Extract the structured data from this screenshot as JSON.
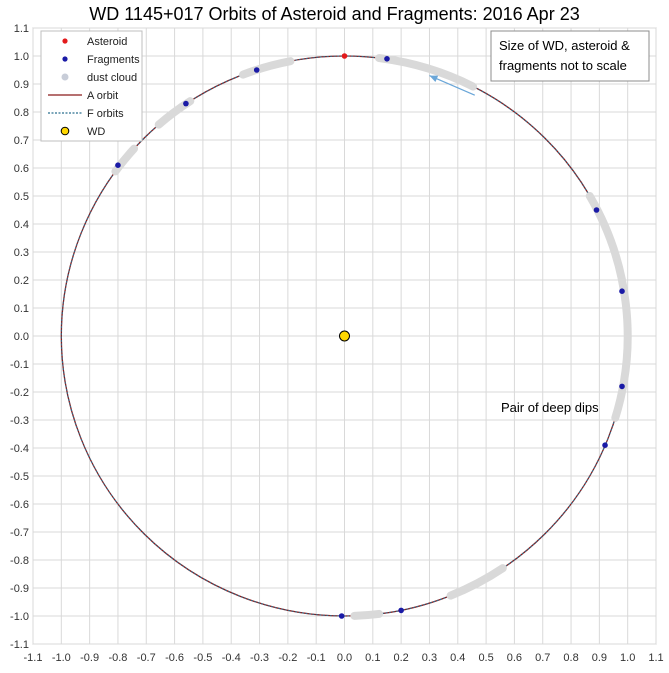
{
  "chart_data": {
    "type": "scatter",
    "title": "WD 1145+017 Orbits of Asteroid and Fragments: 2016 Apr 23",
    "xlim": [
      -1.1,
      1.1
    ],
    "ylim": [
      -1.1,
      1.1
    ],
    "x_ticks": [
      "-1.1",
      "-1.0",
      "-0.9",
      "-0.8",
      "-0.7",
      "-0.6",
      "-0.5",
      "-0.4",
      "-0.3",
      "-0.2",
      "-0.1",
      "0.0",
      "0.1",
      "0.2",
      "0.3",
      "0.4",
      "0.5",
      "0.6",
      "0.7",
      "0.8",
      "0.9",
      "1.0",
      "1.1"
    ],
    "y_ticks": [
      "1.1",
      "1.0",
      "0.9",
      "0.8",
      "0.7",
      "0.6",
      "0.5",
      "0.4",
      "0.3",
      "0.2",
      "0.1",
      "0.0",
      "-0.1",
      "-0.2",
      "-0.3",
      "-0.4",
      "-0.5",
      "-0.6",
      "-0.7",
      "-0.8",
      "-0.9",
      "-1.0",
      "-1.1"
    ],
    "grid": true,
    "legend_position": "top-left",
    "legend": [
      {
        "label": "Asteroid",
        "kind": "dot",
        "color": "#e31a1c"
      },
      {
        "label": "Fragments",
        "kind": "dot",
        "color": "#1a1aa6"
      },
      {
        "label": "dust cloud",
        "kind": "dot",
        "color": "#c8cdd8"
      },
      {
        "label": "A orbit",
        "kind": "line",
        "color": "#8b1a1a"
      },
      {
        "label": "F orbits",
        "kind": "dash",
        "color": "#2a6f8f"
      },
      {
        "label": "WD",
        "kind": "big-dot",
        "color": "#ffd700"
      }
    ],
    "series": [
      {
        "name": "Asteroid",
        "points": [
          [
            0.0,
            1.0
          ]
        ],
        "color": "#e31a1c"
      },
      {
        "name": "Fragments",
        "color": "#1a1aa6",
        "points": [
          [
            0.15,
            0.99
          ],
          [
            -0.31,
            0.95
          ],
          [
            -0.56,
            0.83
          ],
          [
            -0.8,
            0.61
          ],
          [
            0.89,
            0.45
          ],
          [
            0.98,
            0.16
          ],
          [
            0.98,
            -0.18
          ],
          [
            0.92,
            -0.39
          ],
          [
            0.2,
            -0.98
          ],
          [
            -0.01,
            -1.0
          ]
        ]
      },
      {
        "name": "dust cloud",
        "color": "#d9d9d9",
        "arcs_deg": [
          [
            63,
            83
          ],
          [
            101,
            111
          ],
          [
            123,
            131
          ],
          [
            138,
            144
          ],
          [
            -17,
            30
          ],
          [
            -68,
            -56
          ],
          [
            -88,
            -83
          ]
        ]
      },
      {
        "name": "A orbit",
        "center": [
          0,
          0
        ],
        "radius": 1.0,
        "color": "#8b1a1a"
      },
      {
        "name": "F orbits",
        "center": [
          0,
          0
        ],
        "radius": 1.0,
        "color": "#2a6f8f"
      },
      {
        "name": "WD",
        "points": [
          [
            0.0,
            0.0
          ]
        ],
        "color": "#ffd700"
      }
    ],
    "annotations": [
      {
        "text_lines": [
          "Size of WD, asteroid &",
          "fragments not to scale"
        ],
        "boxed": true
      },
      {
        "text_lines": [
          "Pair of deep dips"
        ],
        "boxed": false
      }
    ],
    "arrow": {
      "from": [
        0.46,
        0.86
      ],
      "to": [
        0.3,
        0.93
      ],
      "color": "#6aa6d8"
    }
  }
}
